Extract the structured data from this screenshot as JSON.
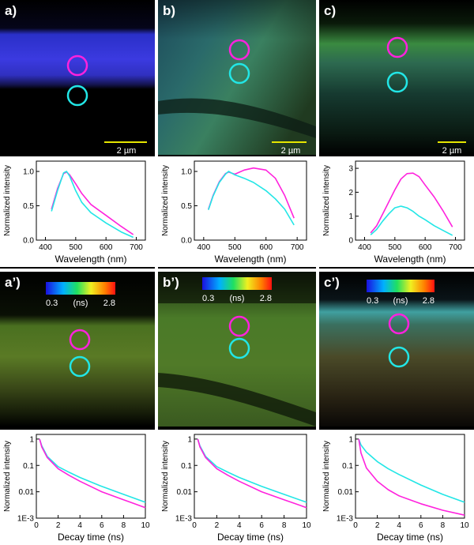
{
  "figure": {
    "panels": [
      {
        "label": "a)",
        "scalebar": "2 µm"
      },
      {
        "label": "b)",
        "scalebar": "2 µm"
      },
      {
        "label": "c)",
        "scalebar": "2 µm"
      },
      {
        "label": "a’)",
        "colorbar": {
          "min": "0.3",
          "unit": "(ns)",
          "max": "2.8"
        }
      },
      {
        "label": "b’)",
        "colorbar": {
          "min": "0.3",
          "unit": "(ns)",
          "max": "2.8"
        }
      },
      {
        "label": "c’)",
        "colorbar": {
          "min": "0.3",
          "unit": "(ns)",
          "max": "2.8"
        }
      }
    ],
    "colors": {
      "magenta": "#ff22dd",
      "cyan": "#22e6e6"
    }
  },
  "chart_data": [
    {
      "type": "line",
      "panel": "a",
      "xlabel": "Wavelength (nm)",
      "ylabel": "Normalized intensity",
      "xlim": [
        370,
        730
      ],
      "ylim": [
        0,
        1.15
      ],
      "xticks": [
        "400",
        "500",
        "600",
        "700"
      ],
      "yticks": [
        "0.0",
        "0.5",
        "1.0"
      ],
      "series": [
        {
          "name": "magenta",
          "x": [
            420,
            440,
            460,
            470,
            480,
            500,
            520,
            550,
            600,
            650,
            690
          ],
          "y": [
            0.45,
            0.75,
            0.97,
            0.99,
            0.95,
            0.82,
            0.68,
            0.52,
            0.36,
            0.2,
            0.08
          ]
        },
        {
          "name": "cyan",
          "x": [
            420,
            440,
            460,
            470,
            480,
            500,
            520,
            550,
            600,
            650,
            690
          ],
          "y": [
            0.42,
            0.72,
            0.98,
            1.0,
            0.93,
            0.72,
            0.55,
            0.4,
            0.25,
            0.12,
            0.04
          ]
        }
      ]
    },
    {
      "type": "line",
      "panel": "b",
      "xlabel": "Wavelength (nm)",
      "ylabel": "Normalized intensity",
      "xlim": [
        370,
        730
      ],
      "ylim": [
        0,
        1.15
      ],
      "xticks": [
        "400",
        "500",
        "600",
        "700"
      ],
      "yticks": [
        "0.0",
        "0.5",
        "1.0"
      ],
      "series": [
        {
          "name": "magenta",
          "x": [
            415,
            430,
            450,
            470,
            480,
            500,
            530,
            560,
            600,
            630,
            660,
            690
          ],
          "y": [
            0.45,
            0.65,
            0.85,
            0.97,
            0.99,
            0.96,
            1.02,
            1.05,
            1.02,
            0.9,
            0.65,
            0.32
          ]
        },
        {
          "name": "cyan",
          "x": [
            415,
            430,
            450,
            470,
            480,
            500,
            530,
            560,
            600,
            630,
            660,
            690
          ],
          "y": [
            0.44,
            0.64,
            0.84,
            0.96,
            1.0,
            0.95,
            0.9,
            0.84,
            0.72,
            0.6,
            0.45,
            0.22
          ]
        }
      ]
    },
    {
      "type": "line",
      "panel": "c",
      "xlabel": "Wavelength (nm)",
      "ylabel": "Normalized intensity",
      "xlim": [
        370,
        730
      ],
      "ylim": [
        0,
        3.3
      ],
      "xticks": [
        "400",
        "500",
        "600",
        "700"
      ],
      "yticks": [
        "0",
        "1",
        "2",
        "3"
      ],
      "series": [
        {
          "name": "magenta",
          "x": [
            420,
            440,
            460,
            480,
            500,
            520,
            540,
            560,
            580,
            600,
            630,
            660,
            690
          ],
          "y": [
            0.3,
            0.6,
            1.1,
            1.6,
            2.1,
            2.55,
            2.78,
            2.8,
            2.65,
            2.3,
            1.8,
            1.2,
            0.55
          ]
        },
        {
          "name": "cyan",
          "x": [
            420,
            440,
            460,
            480,
            500,
            520,
            540,
            560,
            580,
            600,
            630,
            660,
            690
          ],
          "y": [
            0.22,
            0.45,
            0.8,
            1.1,
            1.35,
            1.42,
            1.35,
            1.2,
            1.0,
            0.85,
            0.6,
            0.4,
            0.2
          ]
        }
      ]
    },
    {
      "type": "line",
      "panel": "a'",
      "yscale": "log",
      "xlabel": "Decay time (ns)",
      "ylabel": "Normalized intensity",
      "xlim": [
        0,
        10
      ],
      "ylim": [
        0.001,
        1.5
      ],
      "xticks": [
        "0",
        "2",
        "4",
        "6",
        "8",
        "10"
      ],
      "yticks": [
        "1E-3",
        "0.01",
        "0.1",
        "1"
      ],
      "series": [
        {
          "name": "cyan",
          "x": [
            0.3,
            0.5,
            1,
            2,
            3,
            4,
            6,
            8,
            10
          ],
          "y": [
            1.0,
            0.55,
            0.22,
            0.09,
            0.055,
            0.035,
            0.016,
            0.008,
            0.004
          ]
        },
        {
          "name": "magenta",
          "x": [
            0.3,
            0.5,
            1,
            2,
            3,
            4,
            6,
            8,
            10
          ],
          "y": [
            1.0,
            0.5,
            0.2,
            0.075,
            0.042,
            0.025,
            0.01,
            0.005,
            0.0025
          ]
        }
      ]
    },
    {
      "type": "line",
      "panel": "b'",
      "yscale": "log",
      "xlabel": "Decay time (ns)",
      "ylabel": "Normalized intensity",
      "xlim": [
        0,
        10
      ],
      "ylim": [
        0.001,
        1.5
      ],
      "xticks": [
        "0",
        "2",
        "4",
        "6",
        "8",
        "10"
      ],
      "yticks": [
        "1E-3",
        "0.01",
        "0.1",
        "1"
      ],
      "series": [
        {
          "name": "cyan",
          "x": [
            0.3,
            0.5,
            1,
            2,
            3,
            4,
            6,
            8,
            10
          ],
          "y": [
            1.0,
            0.55,
            0.22,
            0.09,
            0.055,
            0.035,
            0.016,
            0.008,
            0.004
          ]
        },
        {
          "name": "magenta",
          "x": [
            0.3,
            0.5,
            1,
            2,
            3,
            4,
            6,
            8,
            10
          ],
          "y": [
            1.0,
            0.5,
            0.2,
            0.075,
            0.042,
            0.025,
            0.01,
            0.005,
            0.0025
          ]
        }
      ]
    },
    {
      "type": "line",
      "panel": "c'",
      "yscale": "log",
      "xlabel": "Decay time (ns)",
      "ylabel": "Normalized intensity",
      "xlim": [
        0,
        10
      ],
      "ylim": [
        0.001,
        1.5
      ],
      "xticks": [
        "0",
        "2",
        "4",
        "6",
        "8",
        "10"
      ],
      "yticks": [
        "1E-3",
        "0.01",
        "0.1",
        "1"
      ],
      "series": [
        {
          "name": "cyan",
          "x": [
            0.3,
            0.5,
            1,
            2,
            3,
            4,
            6,
            8,
            10
          ],
          "y": [
            1.0,
            0.6,
            0.32,
            0.14,
            0.075,
            0.045,
            0.018,
            0.008,
            0.004
          ]
        },
        {
          "name": "magenta",
          "x": [
            0.3,
            0.5,
            1,
            2,
            3,
            4,
            6,
            8,
            10
          ],
          "y": [
            1.0,
            0.3,
            0.08,
            0.025,
            0.012,
            0.007,
            0.0035,
            0.002,
            0.0013
          ]
        }
      ]
    }
  ]
}
